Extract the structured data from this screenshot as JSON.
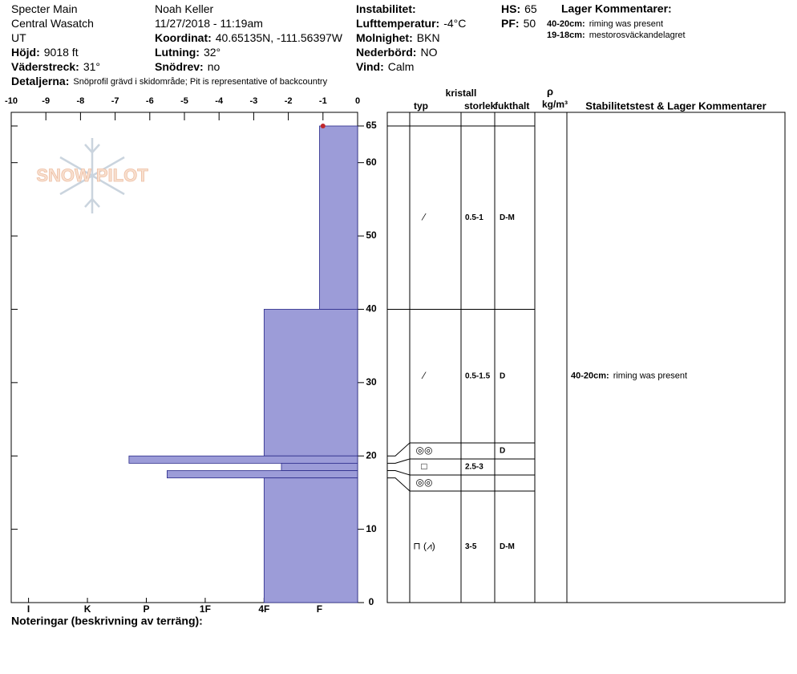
{
  "header": {
    "columns": [
      [
        {
          "value": "Specter Main"
        },
        {
          "value": "Central Wasatch"
        },
        {
          "value": "UT"
        },
        {
          "label": "Höjd:",
          "value": "9018 ft"
        },
        {
          "label": "Väderstreck:",
          "value": "31°"
        }
      ],
      [
        {
          "value": "Noah Keller"
        },
        {
          "value": "11/27/2018 - 11:19am"
        },
        {
          "label": "Koordinat:",
          "value": "40.65135N, -111.56397W"
        },
        {
          "label": "Lutning:",
          "value": "32°"
        },
        {
          "label": "Snödrev:",
          "value": "no"
        }
      ],
      [
        {
          "label": "Instabilitet:"
        },
        {
          "label": "Lufttemperatur:",
          "value": "-4°C"
        },
        {
          "label": "Molnighet:",
          "value": "BKN"
        },
        {
          "label": "Nederbörd:",
          "value": "NO"
        },
        {
          "label": "Vind:",
          "value": "Calm"
        }
      ],
      [
        {
          "label": "HS:",
          "value": 65
        },
        {
          "label": "PF:",
          "value": 50
        }
      ]
    ],
    "details": {
      "label": "Detaljerna:",
      "value": "Snöprofil grävd i skidområde; Pit is representative of backcountry"
    },
    "layer_comments": {
      "title": "Lager Kommentarer:",
      "items": [
        {
          "label": "40-20cm:",
          "value": "riming was present"
        },
        {
          "label": "19-18cm:",
          "value": "mestorosväckandelagret"
        }
      ]
    }
  },
  "logo": "SNOW PILOT",
  "chart_data": {
    "type": "snow-profile",
    "xlim": [
      -10,
      0
    ],
    "xticks": [
      -10,
      -9,
      -8,
      -7,
      -6,
      -5,
      -4,
      -3,
      -2,
      -1,
      0
    ],
    "ylim": [
      0,
      65
    ],
    "yticks": [
      0,
      10,
      20,
      30,
      40,
      50,
      60,
      65
    ],
    "hardness_ticks": [
      {
        "value": -9.5,
        "label": "I"
      },
      {
        "value": -7.8,
        "label": "K"
      },
      {
        "value": -6.1,
        "label": "P"
      },
      {
        "value": -4.4,
        "label": "1F"
      },
      {
        "value": -2.7,
        "label": "4F"
      },
      {
        "value": -1.1,
        "label": "F"
      }
    ],
    "color": "#9c9cd8",
    "layers": [
      {
        "top": 65,
        "bottom": 40,
        "hardness": -1.1,
        "grain": "⁄",
        "size": "0.5-1",
        "moisture": "D-M"
      },
      {
        "top": 40,
        "bottom": 20,
        "hardness": -2.7,
        "grain": "⁄",
        "size": "0.5-1.5",
        "moisture": "D",
        "comment": {
          "label": "40-20cm:",
          "value": "riming was present"
        }
      },
      {
        "top": 20,
        "bottom": 19,
        "hardness": -6.6,
        "grain": "◎◎",
        "moisture": "D"
      },
      {
        "top": 19,
        "bottom": 18,
        "hardness": -2.2,
        "grain": "□",
        "size": "2.5-3"
      },
      {
        "top": 18,
        "bottom": 17,
        "hardness": -5.5,
        "grain": "◎◎"
      },
      {
        "top": 17,
        "bottom": 0,
        "hardness": -2.7,
        "grain": "⊓ (⩘)",
        "size": "3-5",
        "moisture": "D-M"
      }
    ],
    "temperature": [
      {
        "depth": 65,
        "value": -1
      }
    ],
    "temperature_color": "#c0282c"
  },
  "table": {
    "crystal": "kristall",
    "type": "typ",
    "size": "storlek",
    "moisture": "fukthalt",
    "density": "ρ",
    "density_unit": "kg/m³",
    "comments": "Stabilitetstest & Lager Kommentarer"
  },
  "notes": "Noteringar (beskrivning av terräng):"
}
